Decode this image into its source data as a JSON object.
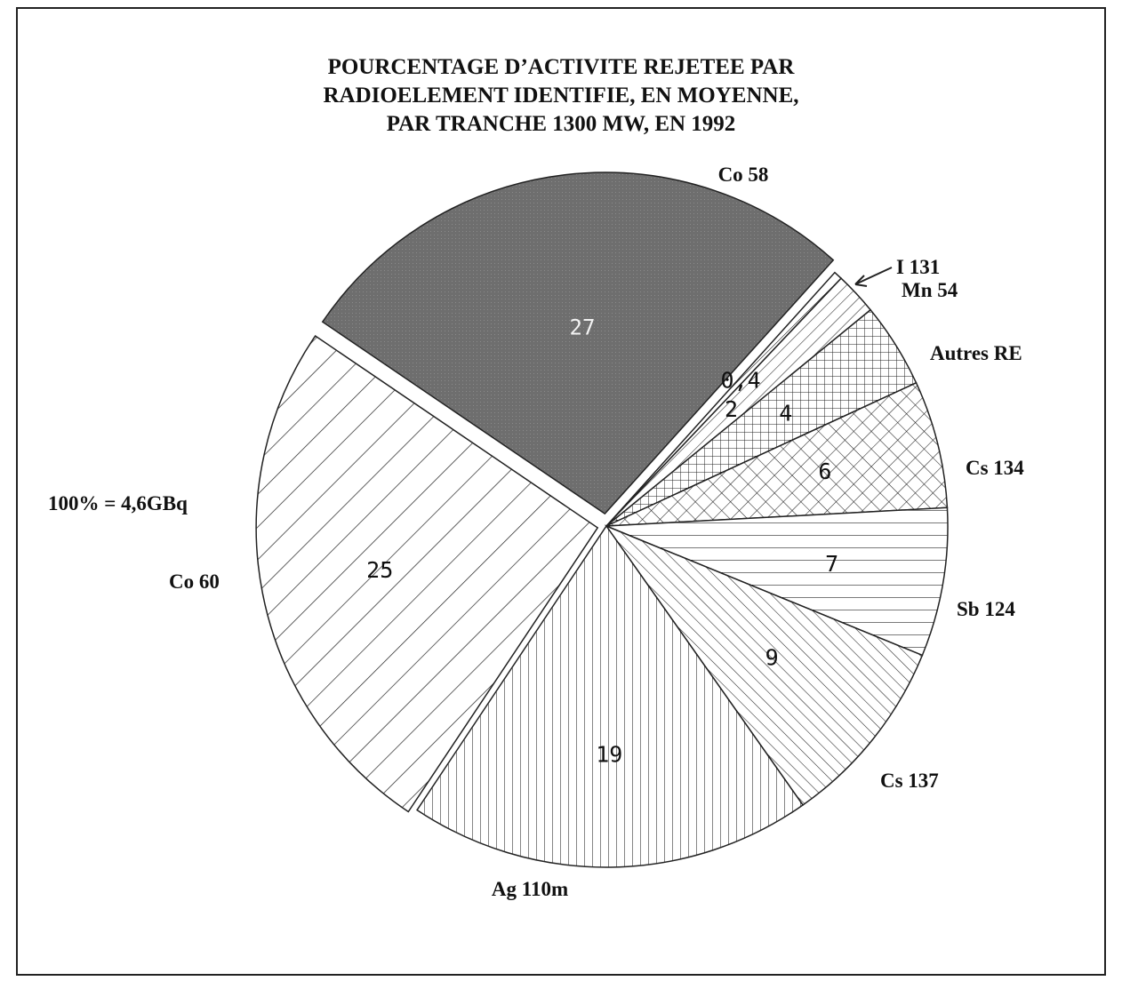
{
  "chart_data": {
    "type": "pie",
    "title": "POURCENTAGE D’ACTIVITE REJETEE PAR RADIOELEMENT IDENTIFIE, EN MOYENNE, PAR TRANCHE 1300 MW, EN 1992",
    "title_lines": [
      "POURCENTAGE D’ACTIVITE REJETEE PAR",
      "RADIOELEMENT IDENTIFIE, EN MOYENNE,",
      "PAR TRANCHE 1300 MW, EN 1992"
    ],
    "note": "100% = 4,6GBq",
    "slices": [
      {
        "name": "Co 58",
        "value": 27,
        "value_label": "27"
      },
      {
        "name": "I 131",
        "value": 0.4,
        "value_label": "0,4"
      },
      {
        "name": "Mn 54",
        "value": 2,
        "value_label": "2"
      },
      {
        "name": "Autres RE",
        "value": 4,
        "value_label": "4"
      },
      {
        "name": "Cs 134",
        "value": 6,
        "value_label": "6"
      },
      {
        "name": "Sb 124",
        "value": 7,
        "value_label": "7"
      },
      {
        "name": "Cs 137",
        "value": 9,
        "value_label": "9"
      },
      {
        "name": "Ag 110m",
        "value": 19,
        "value_label": "19"
      },
      {
        "name": "Co 60",
        "value": 25,
        "value_label": "25"
      }
    ]
  }
}
